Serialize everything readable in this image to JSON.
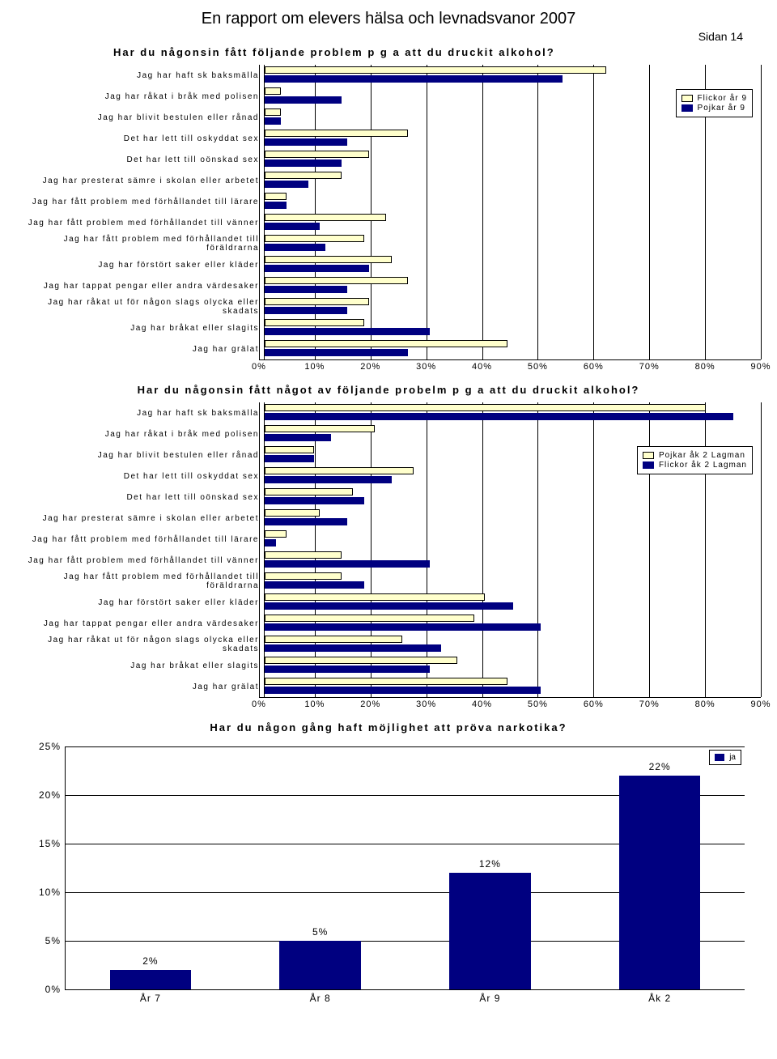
{
  "report_title": "En rapport om elevers hälsa och levnadsvanor 2007",
  "page_number": "Sidan 14",
  "chart1": {
    "type": "horizontal-bar-grouped",
    "title": "Har du någonsin fått följande problem p g a att du druckit alkohol?",
    "x_max": 90,
    "x_ticks": [
      0,
      10,
      20,
      30,
      40,
      50,
      60,
      70,
      80,
      90
    ],
    "x_tick_labels": [
      "0%",
      "10%",
      "20%",
      "30%",
      "40%",
      "50%",
      "60%",
      "70%",
      "80%",
      "90%"
    ],
    "legend": [
      {
        "label": "Flickor år 9",
        "style": "light"
      },
      {
        "label": "Pojkar år 9",
        "style": "dark"
      }
    ],
    "bar_colors": {
      "light": "#ffffcc",
      "dark": "#000080"
    },
    "grid_color": "#000000",
    "label_fontsize": 10,
    "items": [
      {
        "label": "Jag har haft sk baksmälla",
        "light": 62,
        "dark": 54
      },
      {
        "label": "Jag har råkat i bråk med polisen",
        "light": 3,
        "dark": 14
      },
      {
        "label": "Jag har blivit bestulen eller rånad",
        "light": 3,
        "dark": 3
      },
      {
        "label": "Det har lett till oskyddat sex",
        "light": 26,
        "dark": 15
      },
      {
        "label": "Det har lett till oönskad sex",
        "light": 19,
        "dark": 14
      },
      {
        "label": "Jag har presterat sämre i skolan eller arbetet",
        "light": 14,
        "dark": 8
      },
      {
        "label": "Jag har fått problem med förhållandet till lärare",
        "light": 4,
        "dark": 4
      },
      {
        "label": "Jag har fått problem med förhållandet till vänner",
        "light": 22,
        "dark": 10
      },
      {
        "label": "Jag har fått problem med förhållandet till föräldrarna",
        "light": 18,
        "dark": 11
      },
      {
        "label": "Jag har förstört saker eller kläder",
        "light": 23,
        "dark": 19
      },
      {
        "label": "Jag har tappat pengar eller andra värdesaker",
        "light": 26,
        "dark": 15
      },
      {
        "label": "Jag har råkat ut för någon slags olycka eller skadats",
        "light": 19,
        "dark": 15
      },
      {
        "label": "Jag har bråkat eller slagits",
        "light": 18,
        "dark": 30
      },
      {
        "label": "Jag har grälat",
        "light": 44,
        "dark": 26
      }
    ]
  },
  "chart2": {
    "type": "horizontal-bar-grouped",
    "title": "Har du någonsin fått något av följande probelm p g a att du druckit alkohol?",
    "x_max": 90,
    "x_ticks": [
      0,
      10,
      20,
      30,
      40,
      50,
      60,
      70,
      80,
      90
    ],
    "x_tick_labels": [
      "0%",
      "10%",
      "20%",
      "30%",
      "40%",
      "50%",
      "60%",
      "70%",
      "80%",
      "90%"
    ],
    "legend": [
      {
        "label": "Pojkar åk 2 Lagman",
        "style": "light"
      },
      {
        "label": "Flickor åk 2 Lagman",
        "style": "dark"
      }
    ],
    "bar_colors": {
      "light": "#ffffcc",
      "dark": "#000080"
    },
    "grid_color": "#000000",
    "label_fontsize": 10,
    "items": [
      {
        "label": "Jag har haft sk baksmälla",
        "light": 80,
        "dark": 85
      },
      {
        "label": "Jag har råkat i bråk med polisen",
        "light": 20,
        "dark": 12
      },
      {
        "label": "Jag har blivit bestulen eller rånad",
        "light": 9,
        "dark": 9
      },
      {
        "label": "Det har lett till oskyddat sex",
        "light": 27,
        "dark": 23
      },
      {
        "label": "Det har lett till oönskad sex",
        "light": 16,
        "dark": 18
      },
      {
        "label": "Jag har presterat sämre i skolan eller arbetet",
        "light": 10,
        "dark": 15
      },
      {
        "label": "Jag har fått problem med förhållandet till lärare",
        "light": 4,
        "dark": 2
      },
      {
        "label": "Jag har fått problem med förhållandet till vänner",
        "light": 14,
        "dark": 30
      },
      {
        "label": "Jag har fått problem med förhållandet till föräldrarna",
        "light": 14,
        "dark": 18
      },
      {
        "label": "Jag har förstört saker eller kläder",
        "light": 40,
        "dark": 45
      },
      {
        "label": "Jag har tappat pengar eller andra värdesaker",
        "light": 38,
        "dark": 50
      },
      {
        "label": "Jag har råkat ut för någon slags olycka eller skadats",
        "light": 25,
        "dark": 32
      },
      {
        "label": "Jag har bråkat eller slagits",
        "light": 35,
        "dark": 30
      },
      {
        "label": "Jag har grälat",
        "light": 44,
        "dark": 50
      }
    ]
  },
  "chart3": {
    "type": "vertical-bar",
    "title": "Har du någon gång haft möjlighet att pröva narkotika?",
    "y_max": 25,
    "y_ticks": [
      0,
      5,
      10,
      15,
      20,
      25
    ],
    "y_tick_labels": [
      "0%",
      "5%",
      "10%",
      "15%",
      "20%",
      "25%"
    ],
    "legend_label": "ja",
    "bar_color": "#000080",
    "grid_color": "#000000",
    "bar_width_pct": 12,
    "items": [
      {
        "label": "År 7",
        "value": 2,
        "value_label": "2%"
      },
      {
        "label": "År 8",
        "value": 5,
        "value_label": "5%"
      },
      {
        "label": "År 9",
        "value": 12,
        "value_label": "12%"
      },
      {
        "label": "Åk 2",
        "value": 22,
        "value_label": "22%"
      }
    ]
  }
}
